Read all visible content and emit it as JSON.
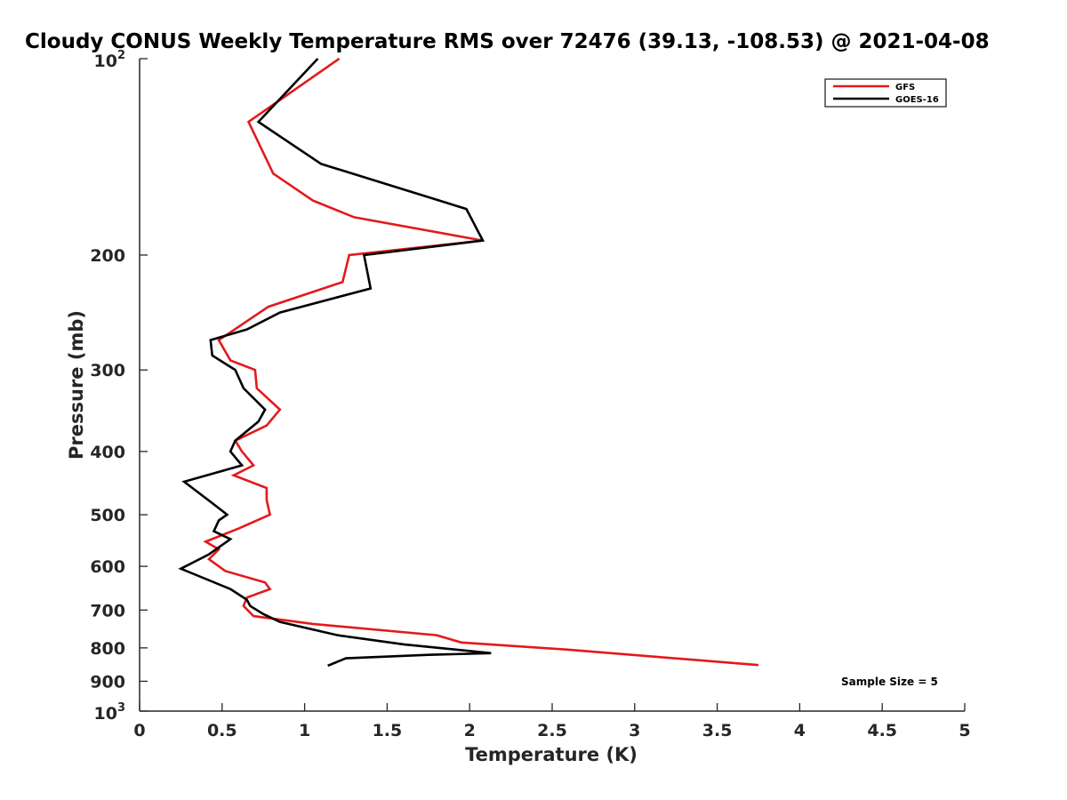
{
  "chart_data": {
    "type": "line",
    "title": "Cloudy CONUS Weekly Temperature RMS over 72476 (39.13, -108.53) @ 2021-04-08",
    "xlabel": "Temperature (K)",
    "ylabel": "Pressure (mb)",
    "xlim": [
      0,
      5
    ],
    "ylim": [
      100,
      1000
    ],
    "y_scale": "log",
    "y_reversed": true,
    "grid": false,
    "legend_position": "top-right",
    "x_ticks": [
      "0",
      "0.5",
      "1",
      "1.5",
      "2",
      "2.5",
      "3",
      "3.5",
      "4",
      "4.5",
      "5"
    ],
    "y_ticks": [
      {
        "value": 100,
        "base": "10",
        "exp": "2"
      },
      {
        "value": 200,
        "label": "200"
      },
      {
        "value": 300,
        "label": "300"
      },
      {
        "value": 400,
        "label": "400"
      },
      {
        "value": 500,
        "label": "500"
      },
      {
        "value": 600,
        "label": "600"
      },
      {
        "value": 700,
        "label": "700"
      },
      {
        "value": 800,
        "label": "800"
      },
      {
        "value": 900,
        "label": "900"
      },
      {
        "value": 1000,
        "base": "10",
        "exp": "3"
      }
    ],
    "annotation": "Sample Size = 5",
    "series": [
      {
        "name": "GFS",
        "color": "#e31a1c",
        "points": [
          [
            1.21,
            100
          ],
          [
            0.66,
            125
          ],
          [
            0.81,
            150
          ],
          [
            1.05,
            165
          ],
          [
            1.3,
            175
          ],
          [
            2.08,
            190
          ],
          [
            1.27,
            200
          ],
          [
            1.23,
            220
          ],
          [
            0.78,
            240
          ],
          [
            0.48,
            270
          ],
          [
            0.55,
            290
          ],
          [
            0.7,
            300
          ],
          [
            0.71,
            320
          ],
          [
            0.85,
            345
          ],
          [
            0.77,
            365
          ],
          [
            0.58,
            385
          ],
          [
            0.62,
            400
          ],
          [
            0.69,
            420
          ],
          [
            0.57,
            435
          ],
          [
            0.77,
            455
          ],
          [
            0.77,
            475
          ],
          [
            0.79,
            500
          ],
          [
            0.6,
            525
          ],
          [
            0.4,
            550
          ],
          [
            0.48,
            565
          ],
          [
            0.42,
            585
          ],
          [
            0.52,
            610
          ],
          [
            0.76,
            635
          ],
          [
            0.79,
            650
          ],
          [
            0.65,
            670
          ],
          [
            0.63,
            690
          ],
          [
            0.69,
            715
          ],
          [
            1.05,
            735
          ],
          [
            1.8,
            765
          ],
          [
            1.95,
            785
          ],
          [
            2.6,
            805
          ],
          [
            3.75,
            850
          ]
        ]
      },
      {
        "name": "GOES-16",
        "color": "#000000",
        "points": [
          [
            1.08,
            100
          ],
          [
            0.72,
            125
          ],
          [
            1.1,
            145
          ],
          [
            1.98,
            170
          ],
          [
            2.08,
            190
          ],
          [
            1.36,
            200
          ],
          [
            1.4,
            225
          ],
          [
            0.85,
            245
          ],
          [
            0.65,
            260
          ],
          [
            0.43,
            270
          ],
          [
            0.44,
            285
          ],
          [
            0.58,
            300
          ],
          [
            0.63,
            320
          ],
          [
            0.76,
            345
          ],
          [
            0.72,
            360
          ],
          [
            0.58,
            385
          ],
          [
            0.55,
            400
          ],
          [
            0.62,
            420
          ],
          [
            0.27,
            445
          ],
          [
            0.44,
            480
          ],
          [
            0.53,
            500
          ],
          [
            0.48,
            510
          ],
          [
            0.45,
            530
          ],
          [
            0.55,
            545
          ],
          [
            0.42,
            575
          ],
          [
            0.25,
            605
          ],
          [
            0.55,
            650
          ],
          [
            0.65,
            675
          ],
          [
            0.67,
            690
          ],
          [
            0.75,
            710
          ],
          [
            0.85,
            730
          ],
          [
            1.2,
            765
          ],
          [
            1.6,
            790
          ],
          [
            2.13,
            815
          ],
          [
            1.75,
            820
          ],
          [
            1.25,
            830
          ],
          [
            1.14,
            852
          ]
        ]
      }
    ]
  }
}
